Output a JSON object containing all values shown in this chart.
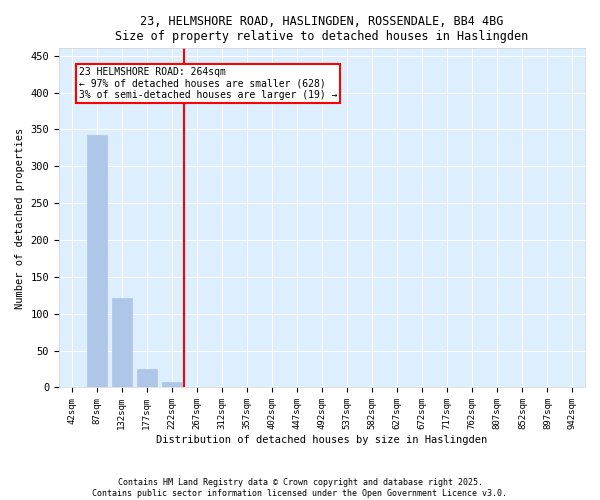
{
  "title_line1": "23, HELMSHORE ROAD, HASLINGDEN, ROSSENDALE, BB4 4BG",
  "title_line2": "Size of property relative to detached houses in Haslingden",
  "xlabel": "Distribution of detached houses by size in Haslingden",
  "ylabel": "Number of detached properties",
  "categories": [
    "42sqm",
    "87sqm",
    "132sqm",
    "177sqm",
    "222sqm",
    "267sqm",
    "312sqm",
    "357sqm",
    "402sqm",
    "447sqm",
    "492sqm",
    "537sqm",
    "582sqm",
    "627sqm",
    "672sqm",
    "717sqm",
    "762sqm",
    "807sqm",
    "852sqm",
    "897sqm",
    "942sqm"
  ],
  "values": [
    0,
    343,
    122,
    25,
    8,
    0,
    0,
    0,
    0,
    0,
    0,
    0,
    0,
    0,
    0,
    0,
    0,
    0,
    0,
    0,
    0
  ],
  "bar_color": "#aec6e8",
  "vline_x": 4.5,
  "vline_color": "red",
  "annotation_text": "23 HELMSHORE ROAD: 264sqm\n← 97% of detached houses are smaller (628)\n3% of semi-detached houses are larger (19) →",
  "ylim": [
    0,
    460
  ],
  "yticks": [
    0,
    50,
    100,
    150,
    200,
    250,
    300,
    350,
    400,
    450
  ],
  "bg_color": "#ddeeff",
  "footer_line1": "Contains HM Land Registry data © Crown copyright and database right 2025.",
  "footer_line2": "Contains public sector information licensed under the Open Government Licence v3.0."
}
